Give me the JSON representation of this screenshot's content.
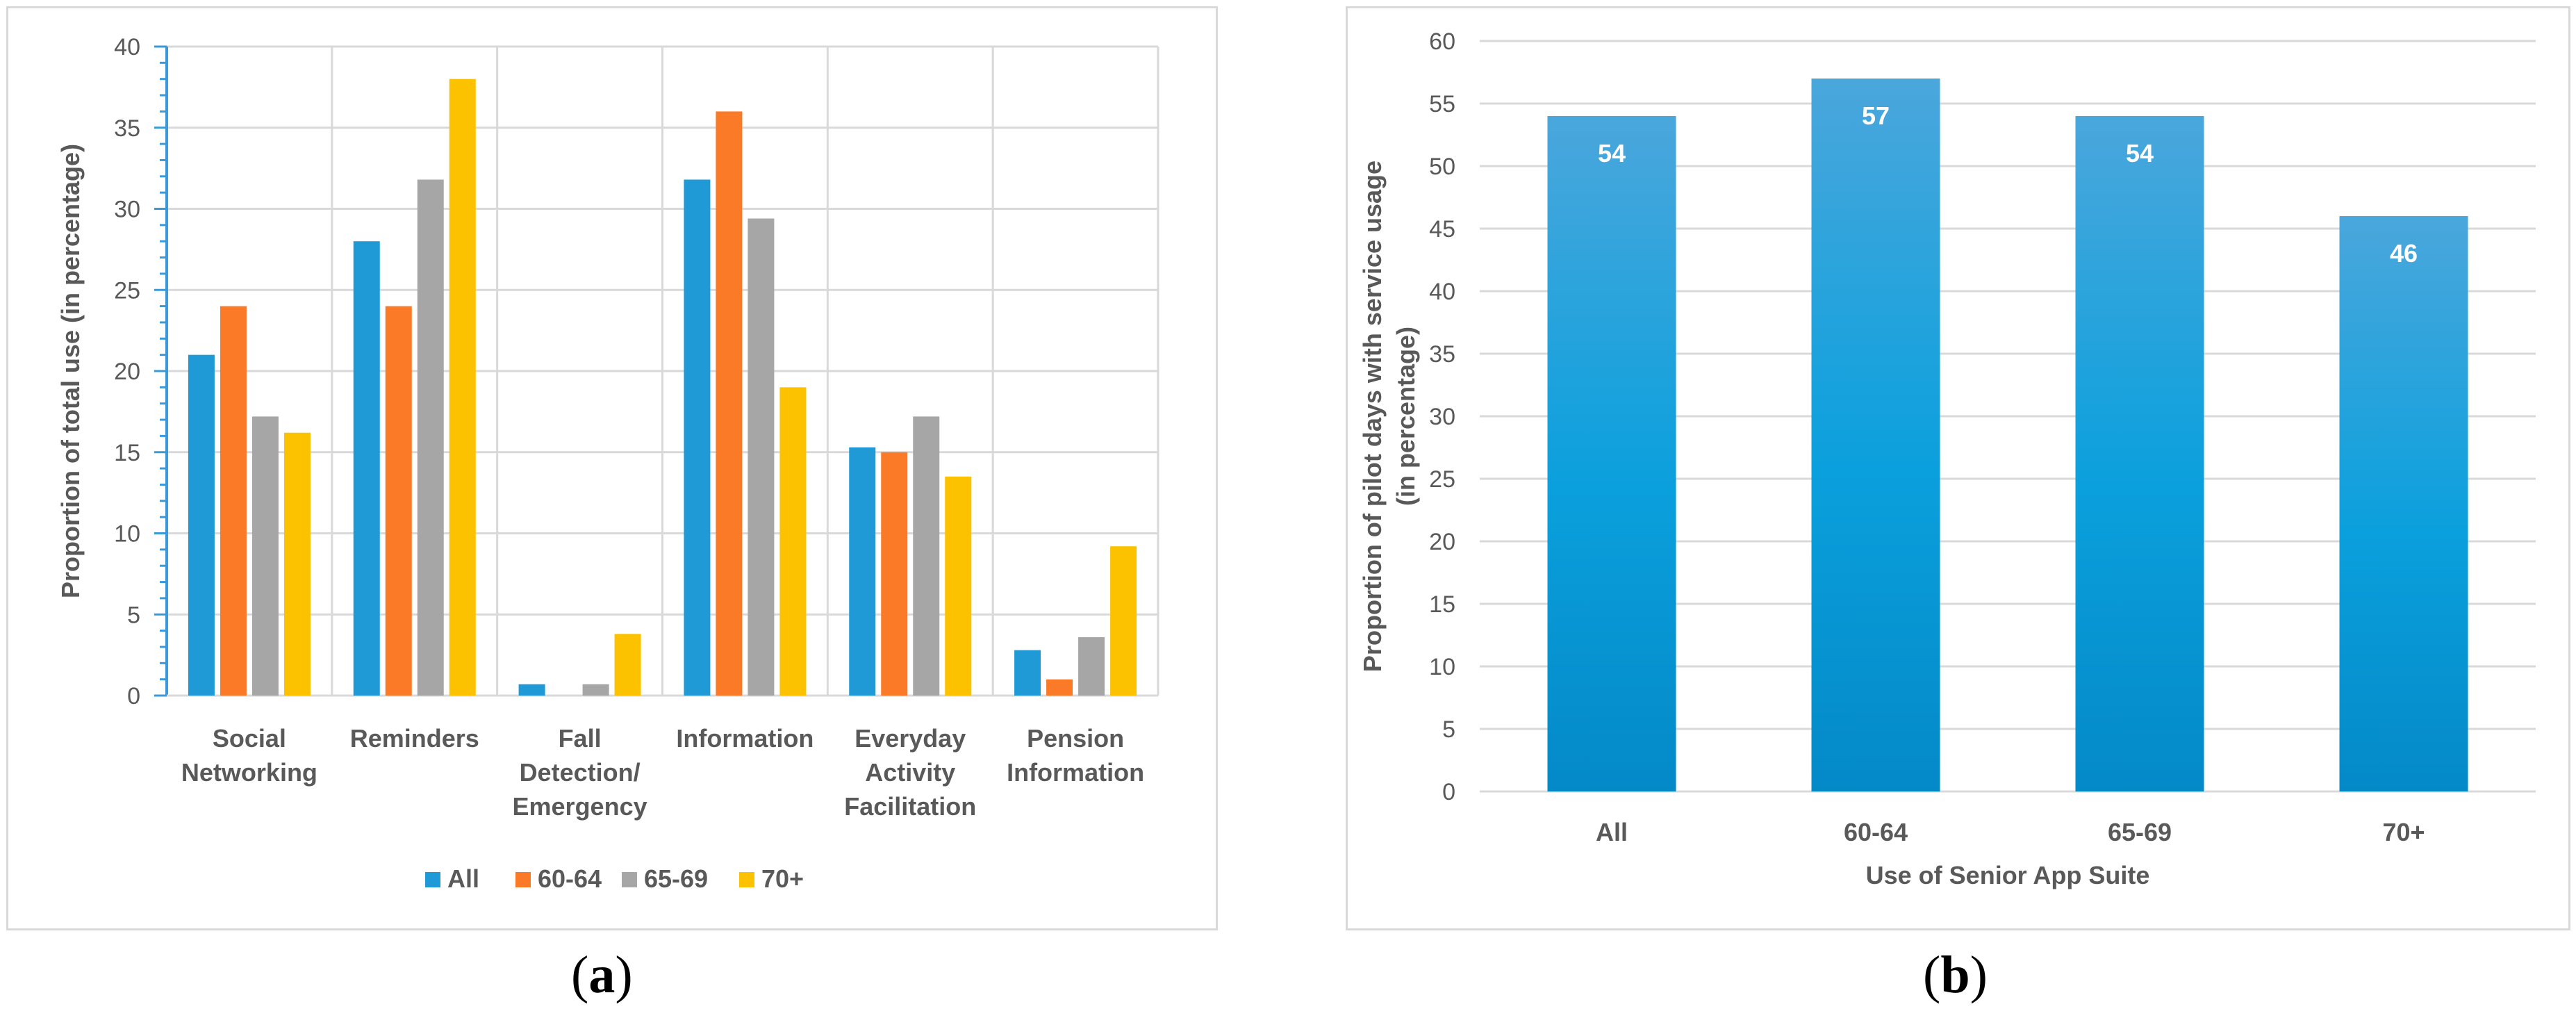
{
  "colors": {
    "all": "#1f9ad6",
    "age_60_64": "#fb7a27",
    "age_65_69": "#a6a6a6",
    "age_70_plus": "#fcc200",
    "grid": "#d9d9d9",
    "axis_left_a": "#3a9ad9",
    "bar_top_b": "#4aa7dc",
    "bar_mid_b": "#0aa0dd",
    "bar_bot_b": "#0489c7"
  },
  "captions": {
    "a_open": "(",
    "a_letter": "a",
    "a_close": ")",
    "b_open": "(",
    "b_letter": "b",
    "b_close": ")"
  },
  "chart_data": [
    {
      "type": "bar",
      "panel": "a",
      "title": "",
      "xlabel": "",
      "ylabel": "Proportion of total use (in percentage)",
      "ylim": [
        0,
        40
      ],
      "yticks": [
        "0",
        "5",
        "10",
        "15",
        "20",
        "25",
        "30",
        "35",
        "40"
      ],
      "categories": [
        [
          "Social",
          "Networking"
        ],
        [
          "Reminders"
        ],
        [
          "Fall",
          "Detection/",
          "Emergency"
        ],
        [
          "Information"
        ],
        [
          "Everyday",
          "Activity",
          "Facilitation"
        ],
        [
          "Pension",
          "Information"
        ]
      ],
      "series": [
        {
          "name": "All",
          "values": [
            21,
            28,
            0.7,
            31.8,
            15.3,
            2.8
          ]
        },
        {
          "name": "60-64",
          "values": [
            24,
            24,
            0,
            36,
            15,
            1
          ]
        },
        {
          "name": "65-69",
          "values": [
            17.2,
            31.8,
            0.7,
            29.4,
            17.2,
            3.6
          ]
        },
        {
          "name": "70+",
          "values": [
            16.2,
            38,
            3.8,
            19,
            13.5,
            9.2
          ]
        }
      ],
      "legend": "bottom-center",
      "grid": true
    },
    {
      "type": "bar",
      "panel": "b",
      "title": "",
      "xlabel": "Use of Senior App Suite",
      "ylabel_lines": [
        "Proportion of pilot days with service usage",
        "(in percentage)"
      ],
      "ylim": [
        0,
        60
      ],
      "yticks": [
        "0",
        "5",
        "10",
        "15",
        "20",
        "25",
        "30",
        "35",
        "40",
        "45",
        "50",
        "55",
        "60"
      ],
      "categories": [
        "All",
        "60-64",
        "65-69",
        "70+"
      ],
      "values": [
        54,
        57,
        54,
        46
      ],
      "data_labels": [
        "54",
        "57",
        "54",
        "46"
      ],
      "grid": true
    }
  ]
}
